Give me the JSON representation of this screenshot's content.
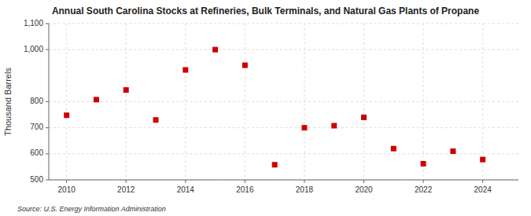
{
  "chart_data": {
    "type": "scatter",
    "title": "Annual South Carolina Stocks at Refineries, Bulk Terminals, and Natural Gas Plants of Propane",
    "y_label": "Thousand Barrels",
    "annotations": [
      "Source: U.S. Energy Information Administration"
    ],
    "x": [
      2010,
      2011,
      2012,
      2013,
      2014,
      2015,
      2016,
      2017,
      2018,
      2019,
      2020,
      2021,
      2022,
      2023,
      2024
    ],
    "values": [
      748,
      808,
      845,
      730,
      922,
      1000,
      940,
      558,
      700,
      708,
      740,
      620,
      562,
      610,
      578
    ],
    "color": "#cc0000",
    "marker": "square",
    "xlim": [
      2009.4,
      2025.2
    ],
    "xticks": [
      2010,
      2012,
      2014,
      2016,
      2018,
      2020,
      2022,
      2024
    ],
    "ylim": [
      500,
      1100
    ],
    "yticks": [
      500,
      600,
      700,
      800,
      {
        "value": 1000,
        "label": "1,000"
      },
      {
        "value": 1100,
        "label": "1,100"
      }
    ],
    "grid": true
  }
}
